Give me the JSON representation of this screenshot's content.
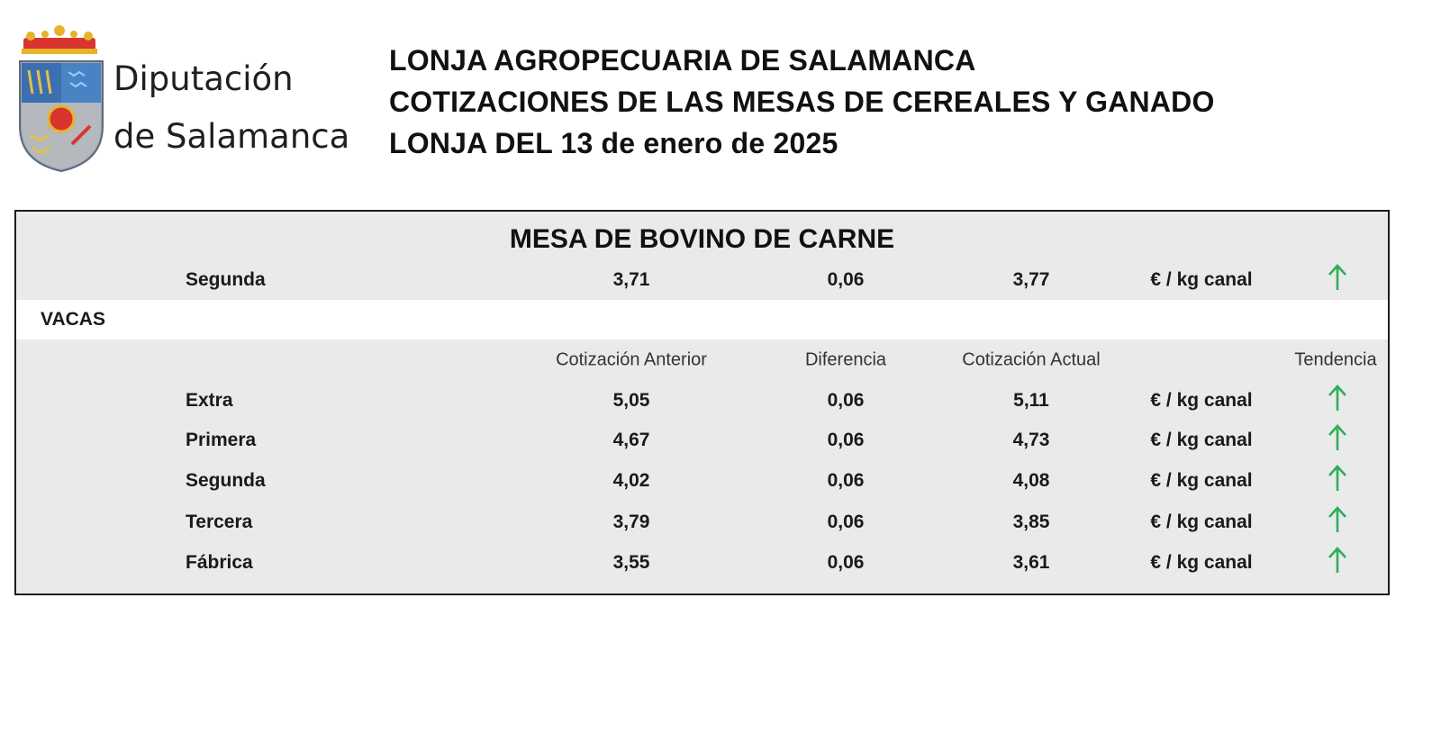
{
  "logo": {
    "line1": "Diputación",
    "line2": "de Salamanca"
  },
  "header": {
    "line1": "LONJA AGROPECUARIA DE SALAMANCA",
    "line2": "COTIZACIONES DE LAS MESAS DE CEREALES Y GANADO",
    "line3": "LONJA DEL 13 de enero de 2025"
  },
  "table": {
    "title": "MESA DE BOVINO DE CARNE",
    "top_row": {
      "category": "Segunda",
      "prev": "3,71",
      "diff": "0,06",
      "curr": "3,77",
      "unit": "€ / kg canal",
      "trend": "up"
    },
    "section": "VACAS",
    "columns": {
      "prev": "Cotización Anterior",
      "diff": "Diferencia",
      "curr": "Cotización Actual",
      "trend": "Tendencia"
    },
    "rows": [
      {
        "category": "Extra",
        "prev": "5,05",
        "diff": "0,06",
        "curr": "5,11",
        "unit": "€ / kg canal",
        "trend": "up"
      },
      {
        "category": "Primera",
        "prev": "4,67",
        "diff": "0,06",
        "curr": "4,73",
        "unit": "€ / kg canal",
        "trend": "up"
      },
      {
        "category": "Segunda",
        "prev": "4,02",
        "diff": "0,06",
        "curr": "4,08",
        "unit": "€ / kg canal",
        "trend": "up"
      },
      {
        "category": "Tercera",
        "prev": "3,79",
        "diff": "0,06",
        "curr": "3,85",
        "unit": "€ / kg canal",
        "trend": "up"
      },
      {
        "category": "Fábrica",
        "prev": "3,55",
        "diff": "0,06",
        "curr": "3,61",
        "unit": "€ / kg canal",
        "trend": "up"
      }
    ]
  },
  "colors": {
    "trend_up": "#2fae5a",
    "panel_bg": "#eaeaea",
    "border": "#1e1e1e"
  }
}
